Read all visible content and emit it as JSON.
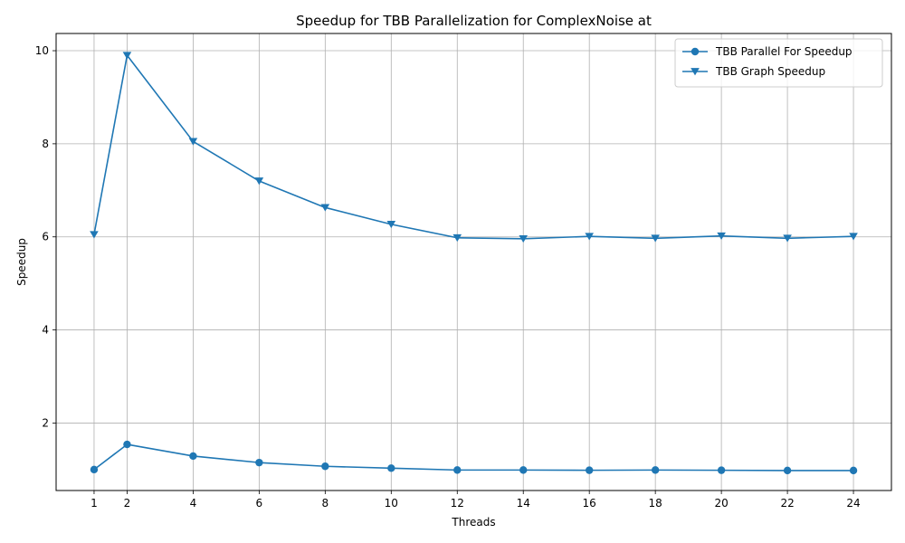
{
  "chart_data": {
    "type": "line",
    "title": "Speedup for TBB Parallelization for ComplexNoise at",
    "xlabel": "Threads",
    "ylabel": "Speedup",
    "x": [
      1,
      2,
      4,
      6,
      8,
      10,
      12,
      14,
      16,
      18,
      20,
      22,
      24
    ],
    "x_ticks": [
      1,
      2,
      4,
      6,
      8,
      10,
      12,
      14,
      16,
      18,
      20,
      22,
      24
    ],
    "y_ticks": [
      2,
      4,
      6,
      8,
      10
    ],
    "xlim": [
      -0.15,
      25.15
    ],
    "ylim": [
      0.55,
      10.37
    ],
    "grid": true,
    "legend_position": "upper right",
    "series": [
      {
        "name": "TBB Parallel For Speedup",
        "marker": "circle",
        "color": "#1f77b4",
        "values": [
          1.0,
          1.54,
          1.29,
          1.15,
          1.07,
          1.03,
          0.99,
          0.99,
          0.985,
          0.99,
          0.985,
          0.98,
          0.98
        ]
      },
      {
        "name": "TBB Graph Speedup",
        "marker": "triangle-down",
        "color": "#1f77b4",
        "values": [
          6.05,
          9.9,
          8.05,
          7.2,
          6.63,
          6.27,
          5.98,
          5.96,
          6.01,
          5.97,
          6.02,
          5.97,
          6.01
        ]
      }
    ]
  }
}
